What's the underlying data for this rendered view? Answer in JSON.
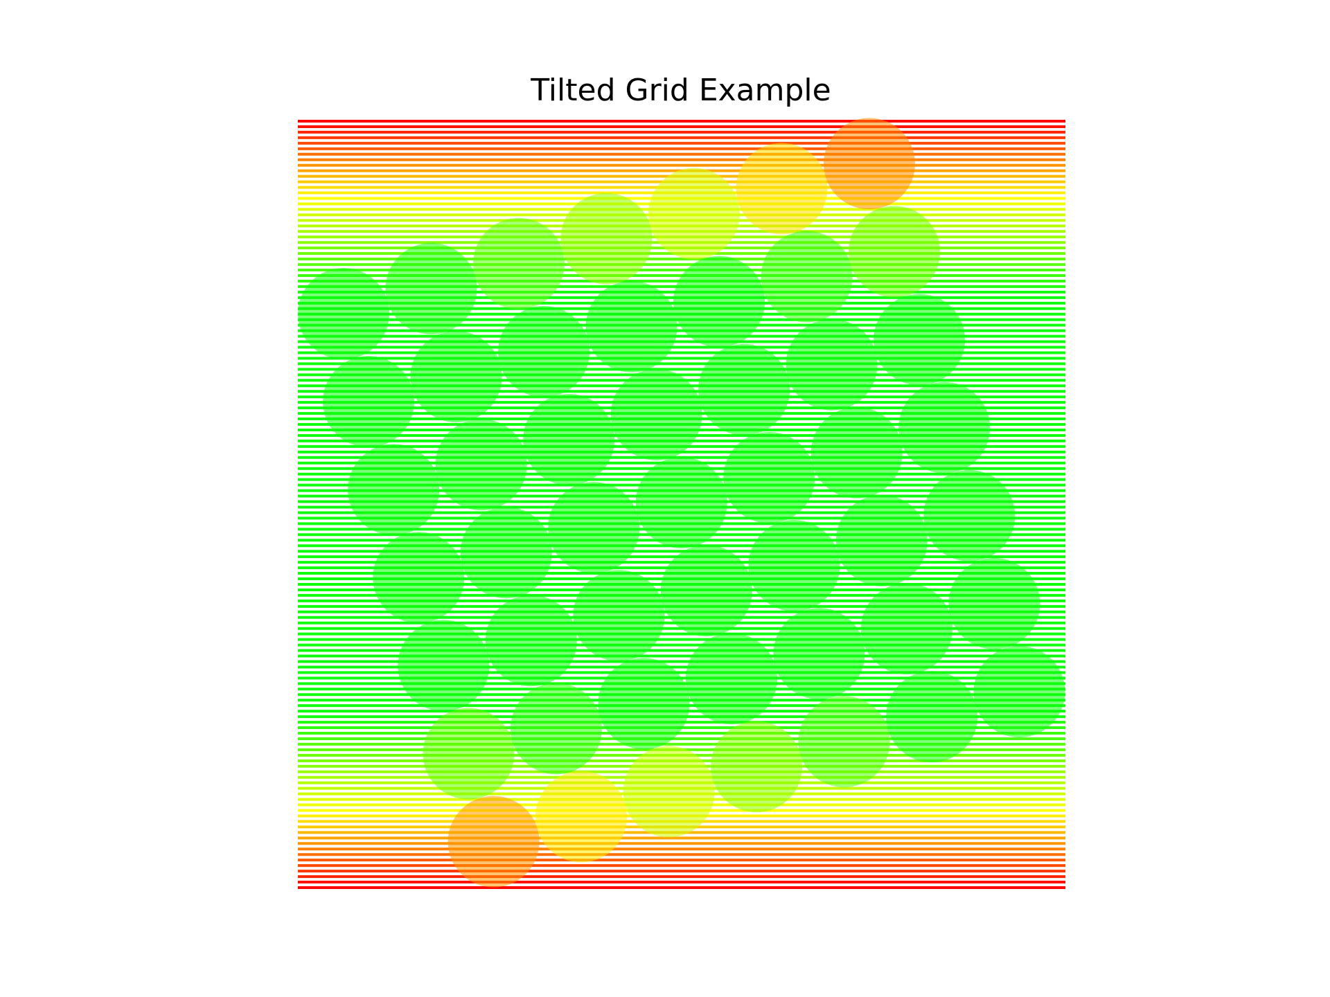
{
  "title": "Tilted Grid Example"
}
